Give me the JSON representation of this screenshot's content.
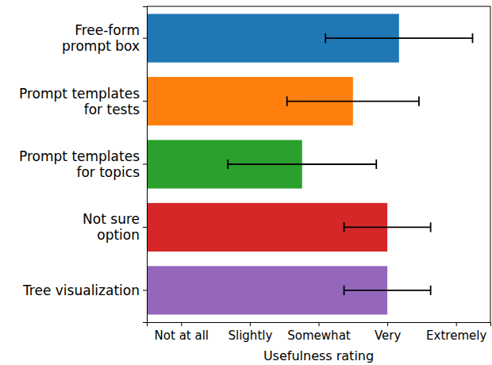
{
  "chart_data": {
    "type": "bar",
    "orientation": "horizontal",
    "categories": [
      "Free-form\nprompt box",
      "Prompt templates\nfor tests",
      "Prompt templates\nfor topics",
      "Not sure\noption",
      "Tree visualization"
    ],
    "values": [
      4.17,
      3.5,
      2.76,
      4.0,
      4.0
    ],
    "errors": [
      1.07,
      0.96,
      1.08,
      0.63,
      0.63
    ],
    "colors": [
      "#1f77b4",
      "#ff7f0e",
      "#2ca02c",
      "#d62728",
      "#9467bd"
    ],
    "x_label": "Usefulness rating",
    "xlim": [
      0.5,
      5.5
    ],
    "xticks": [
      {
        "value": 1,
        "label": "Not at all"
      },
      {
        "value": 2,
        "label": "Slightly"
      },
      {
        "value": 3,
        "label": "Somewhat"
      },
      {
        "value": 4,
        "label": "Very"
      },
      {
        "value": 5,
        "label": "Extremely"
      }
    ]
  }
}
